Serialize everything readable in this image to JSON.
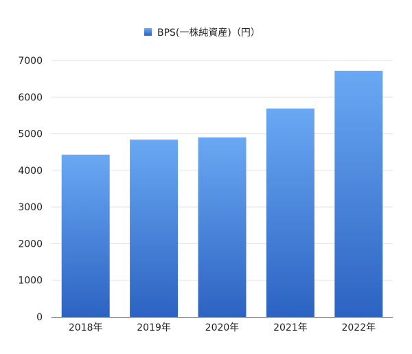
{
  "chart_data": {
    "type": "bar",
    "categories": [
      "2018年",
      "2019年",
      "2020年",
      "2021年",
      "2022年"
    ],
    "series": [
      {
        "name": "BPS(一株純資産)（円）",
        "values": [
          4430,
          4840,
          4900,
          5690,
          6720
        ]
      }
    ],
    "ylim": [
      0,
      7000
    ],
    "yticks": [
      0,
      1000,
      2000,
      3000,
      4000,
      5000,
      6000,
      7000
    ],
    "grid": true,
    "legend_position": "top-center",
    "colors": {
      "bar_top": "#6aa8f3",
      "bar_bottom": "#2c63c2",
      "grid": "#e2e2e2",
      "axis": "#666666"
    }
  }
}
